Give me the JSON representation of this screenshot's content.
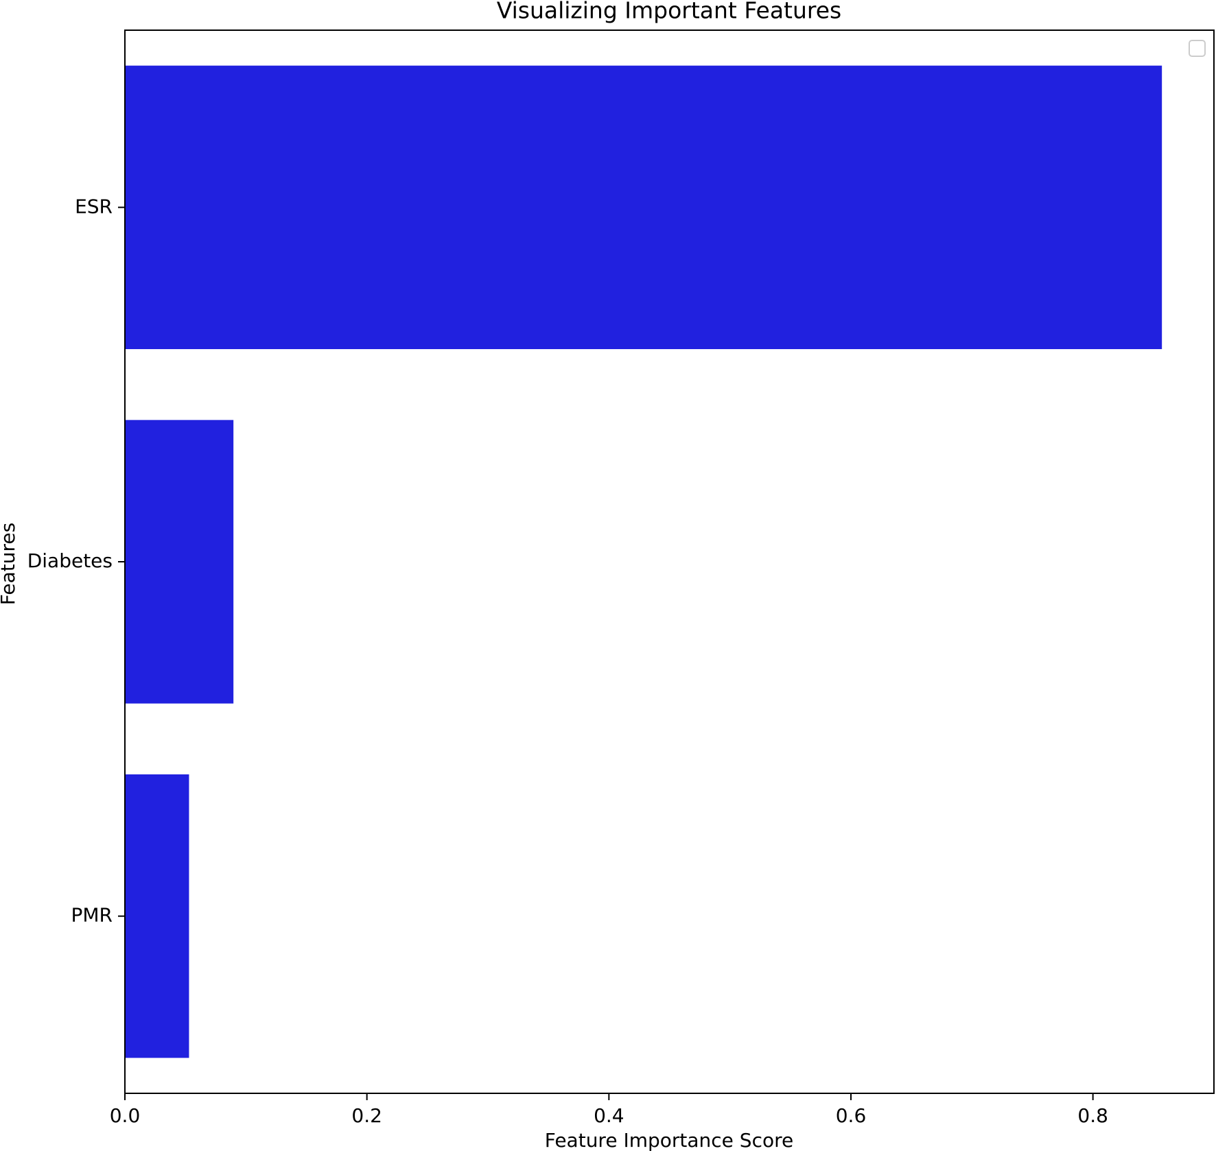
{
  "chart_data": {
    "type": "barh",
    "title": "Visualizing Important Features",
    "x_label": "Feature Importance Score",
    "y_label": "Features",
    "categories": [
      "ESR",
      "Diabetes",
      "PMR"
    ],
    "values": [
      0.857,
      0.0897,
      0.053
    ],
    "color": "#2121df",
    "xlim": [
      0,
      0.9
    ],
    "xticks": [
      {
        "value": 0,
        "label": "0.0"
      },
      0.2,
      0.4,
      0.6,
      0.8
    ],
    "grid": false
  }
}
